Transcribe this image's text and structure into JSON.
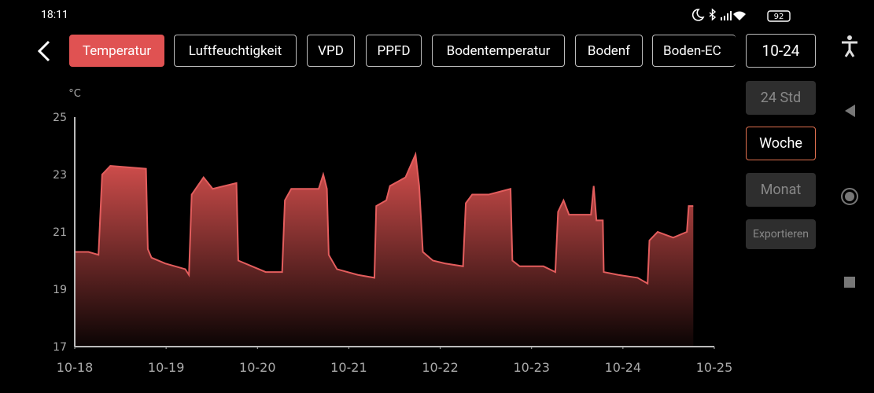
{
  "status_bar": {
    "time": "18:11",
    "battery": "92"
  },
  "tabs": [
    "Temperatur",
    "Luftfeuchtigkeit",
    "VPD",
    "PPFD",
    "Bodentemperatur",
    "Bodenf",
    "Boden-EC"
  ],
  "date_button": "10-24",
  "range_buttons": [
    "24 Std",
    "Woche",
    "Monat"
  ],
  "export_button": "Exportieren",
  "chart_data": {
    "type": "area",
    "y_label": "°C",
    "color": "#e35d5d",
    "x": [
      0,
      0.15,
      0.26,
      0.3,
      0.39,
      0.78,
      0.8,
      0.84,
      0.99,
      1.21,
      1.25,
      1.28,
      1.41,
      1.51,
      1.77,
      1.79,
      1.94,
      2.09,
      2.27,
      2.3,
      2.37,
      2.67,
      2.72,
      2.76,
      2.78,
      2.87,
      3.1,
      3.28,
      3.3,
      3.41,
      3.45,
      3.62,
      3.73,
      3.77,
      3.81,
      3.92,
      4.05,
      4.25,
      4.28,
      4.35,
      4.53,
      4.77,
      4.79,
      4.87,
      5.13,
      5.26,
      5.29,
      5.35,
      5.41,
      5.65,
      5.68,
      5.71,
      5.78,
      5.79,
      5.95,
      6.16,
      6.27,
      6.29,
      6.38,
      6.55,
      6.7,
      6.72,
      6.77
    ],
    "values": [
      20.3,
      20.3,
      20.2,
      23.0,
      23.3,
      23.2,
      20.4,
      20.1,
      19.9,
      19.7,
      19.5,
      22.3,
      22.9,
      22.5,
      22.7,
      20.0,
      19.8,
      19.6,
      19.6,
      22.1,
      22.5,
      22.5,
      23.0,
      22.5,
      20.2,
      19.7,
      19.5,
      19.4,
      21.9,
      22.1,
      22.6,
      22.9,
      23.7,
      22.6,
      20.3,
      20.0,
      19.9,
      19.8,
      22.0,
      22.3,
      22.3,
      22.5,
      20.0,
      19.8,
      19.8,
      19.6,
      21.7,
      22.1,
      21.6,
      21.6,
      22.6,
      21.4,
      21.4,
      19.6,
      19.5,
      19.4,
      19.2,
      20.7,
      21.0,
      20.8,
      21.0,
      21.9,
      21.9
    ],
    "xlim": [
      0,
      7
    ],
    "xticks": [
      {
        "value": 0,
        "label": "10-18"
      },
      {
        "value": 1,
        "label": "10-19"
      },
      {
        "value": 2,
        "label": "10-20"
      },
      {
        "value": 3,
        "label": "10-21"
      },
      {
        "value": 4,
        "label": "10-22"
      },
      {
        "value": 5,
        "label": "10-23"
      },
      {
        "value": 6,
        "label": "10-24"
      },
      {
        "value": 7,
        "label": "10-25"
      }
    ],
    "ylim": [
      17,
      25
    ],
    "yticks": [
      17,
      19,
      21,
      23,
      25
    ]
  }
}
